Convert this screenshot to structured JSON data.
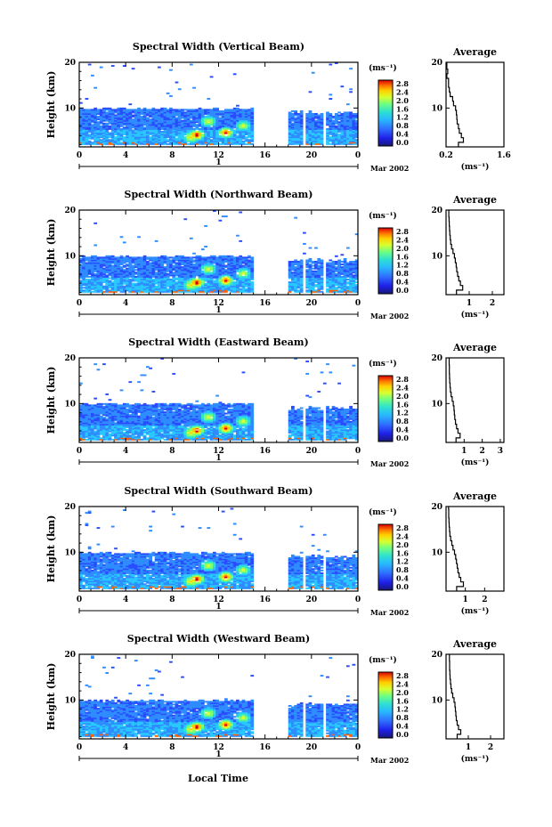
{
  "chart_data": [
    {
      "type": "heatmap",
      "title": "Spectral Width (Vertical Beam)",
      "ylabel": "Height (km)",
      "x_ticks": [
        "0",
        "4",
        "8",
        "12",
        "16",
        "20",
        "0"
      ],
      "xlim": [
        0,
        24
      ],
      "y_ticks": [
        "10",
        "20"
      ],
      "ylim": [
        1.5,
        20
      ],
      "date_marker": "1",
      "date_label": "Mar 2002",
      "colorbar_unit": "(ms⁻¹)",
      "colorbar_ticks": [
        "2.8",
        "2.4",
        "2.0",
        "1.6",
        "1.2",
        "0.8",
        "0.4",
        "0.0"
      ],
      "profile": {
        "title": "Average",
        "x_ticks": [
          "0.2",
          "1.6"
        ],
        "xlim": [
          0.2,
          1.6
        ],
        "y_ticks": [
          "10",
          "20"
        ],
        "xlabel": "(ms⁻¹)",
        "heights": [
          2,
          3,
          4,
          5,
          6,
          7,
          8,
          9,
          10,
          11,
          12,
          13,
          14,
          15,
          16,
          17,
          18,
          19,
          20
        ],
        "values": [
          0.5,
          0.62,
          0.57,
          0.52,
          0.5,
          0.47,
          0.46,
          0.45,
          0.43,
          0.38,
          0.36,
          0.3,
          0.28,
          0.26,
          0.26,
          0.22,
          0.24,
          0.22,
          0.22
        ]
      }
    },
    {
      "type": "heatmap",
      "title": "Spectral Width (Northward Beam)",
      "ylabel": "Height (km)",
      "x_ticks": [
        "0",
        "4",
        "8",
        "12",
        "16",
        "20",
        "0"
      ],
      "xlim": [
        0,
        24
      ],
      "y_ticks": [
        "10",
        "20"
      ],
      "ylim": [
        1.5,
        20
      ],
      "date_marker": "1",
      "date_label": "Mar 2002",
      "colorbar_unit": "(ms⁻¹)",
      "colorbar_ticks": [
        "2.8",
        "2.4",
        "2.0",
        "1.6",
        "1.2",
        "0.8",
        "0.4",
        "0.0"
      ],
      "profile": {
        "title": "Average",
        "x_ticks": [
          "1",
          "2"
        ],
        "xlim": [
          0,
          2.5
        ],
        "y_ticks": [
          "10",
          "20"
        ],
        "xlabel": "(ms⁻¹)",
        "heights": [
          2,
          3,
          4,
          5,
          6,
          7,
          8,
          9,
          10,
          11,
          12,
          13,
          14,
          15,
          16,
          17,
          18,
          19,
          20
        ],
        "values": [
          0.45,
          0.72,
          0.62,
          0.55,
          0.5,
          0.46,
          0.44,
          0.4,
          0.36,
          0.3,
          0.24,
          0.2,
          0.18,
          0.16,
          0.15,
          0.14,
          0.13,
          0.12,
          0.12
        ]
      }
    },
    {
      "type": "heatmap",
      "title": "Spectral Width (Eastward Beam)",
      "ylabel": "Height (km)",
      "x_ticks": [
        "0",
        "4",
        "8",
        "12",
        "16",
        "20",
        "0"
      ],
      "xlim": [
        0,
        24
      ],
      "y_ticks": [
        "10",
        "20"
      ],
      "ylim": [
        1.5,
        20
      ],
      "date_marker": "1",
      "date_label": "Mar 2002",
      "colorbar_unit": "(ms⁻¹)",
      "colorbar_ticks": [
        "2.8",
        "2.4",
        "2.0",
        "1.6",
        "1.2",
        "0.8",
        "0.4",
        "0.0"
      ],
      "profile": {
        "title": "Average",
        "x_ticks": [
          "1",
          "2",
          "3"
        ],
        "xlim": [
          0,
          3.2
        ],
        "y_ticks": [
          "10",
          "20"
        ],
        "xlabel": "(ms⁻¹)",
        "heights": [
          2,
          3,
          4,
          5,
          6,
          7,
          8,
          9,
          10,
          11,
          12,
          13,
          14,
          15,
          16,
          17,
          18,
          19,
          20
        ],
        "values": [
          0.55,
          0.78,
          0.66,
          0.58,
          0.52,
          0.48,
          0.46,
          0.44,
          0.4,
          0.34,
          0.28,
          0.24,
          0.22,
          0.2,
          0.19,
          0.18,
          0.18,
          0.17,
          0.17
        ]
      }
    },
    {
      "type": "heatmap",
      "title": "Spectral Width (Southward Beam)",
      "ylabel": "Height (km)",
      "x_ticks": [
        "0",
        "4",
        "8",
        "12",
        "16",
        "20",
        "0"
      ],
      "xlim": [
        0,
        24
      ],
      "y_ticks": [
        "10",
        "20"
      ],
      "ylim": [
        1.5,
        20
      ],
      "date_marker": "1",
      "date_label": "Mar 2002",
      "colorbar_unit": "(ms⁻¹)",
      "colorbar_ticks": [
        "2.8",
        "2.4",
        "2.0",
        "1.6",
        "1.2",
        "0.8",
        "0.4",
        "0.0"
      ],
      "profile": {
        "title": "Average",
        "x_ticks": [
          "1",
          "2"
        ],
        "xlim": [
          0,
          3.0
        ],
        "y_ticks": [
          "10",
          "20"
        ],
        "xlabel": "(ms⁻¹)",
        "heights": [
          2,
          3,
          4,
          5,
          6,
          7,
          8,
          9,
          10,
          11,
          12,
          13,
          14,
          15,
          16,
          17,
          18,
          19,
          20
        ],
        "values": [
          0.55,
          0.9,
          0.76,
          0.68,
          0.62,
          0.58,
          0.54,
          0.5,
          0.44,
          0.36,
          0.3,
          0.24,
          0.2,
          0.18,
          0.16,
          0.15,
          0.14,
          0.14,
          0.13
        ]
      }
    },
    {
      "type": "heatmap",
      "title": "Spectral Width (Westward Beam)",
      "ylabel": "Height (km)",
      "xlabel": "Local Time",
      "x_ticks": [
        "0",
        "4",
        "8",
        "12",
        "16",
        "20",
        "0"
      ],
      "xlim": [
        0,
        24
      ],
      "y_ticks": [
        "10",
        "20"
      ],
      "ylim": [
        1.5,
        20
      ],
      "date_marker": "1",
      "date_label": "Mar 2002",
      "colorbar_unit": "(ms⁻¹)",
      "colorbar_ticks": [
        "2.8",
        "2.4",
        "2.0",
        "1.6",
        "1.2",
        "0.8",
        "0.4",
        "0.0"
      ],
      "profile": {
        "title": "Average",
        "x_ticks": [
          "1",
          "2"
        ],
        "xlim": [
          0,
          2.6
        ],
        "y_ticks": [
          "10",
          "20"
        ],
        "xlabel": "(ms⁻¹)",
        "heights": [
          2,
          3,
          4,
          5,
          6,
          7,
          8,
          9,
          10,
          11,
          12,
          13,
          14,
          15,
          16,
          17,
          18,
          19,
          20
        ],
        "values": [
          0.5,
          0.66,
          0.56,
          0.5,
          0.46,
          0.44,
          0.42,
          0.4,
          0.36,
          0.3,
          0.25,
          0.22,
          0.2,
          0.18,
          0.17,
          0.16,
          0.16,
          0.15,
          0.15
        ]
      }
    }
  ]
}
